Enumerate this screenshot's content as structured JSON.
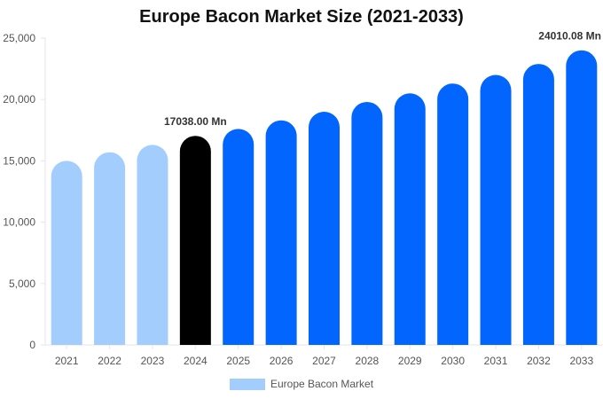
{
  "chart_data": {
    "type": "bar",
    "title": "Europe Bacon Market Size (2021-2033)",
    "xlabel": "",
    "ylabel": "",
    "categories": [
      "2021",
      "2022",
      "2023",
      "2024",
      "2025",
      "2026",
      "2027",
      "2028",
      "2029",
      "2030",
      "2031",
      "2032",
      "2033"
    ],
    "series": [
      {
        "name": "Europe Bacon Market",
        "values": [
          15000,
          15700,
          16300,
          17038.0,
          17600,
          18300,
          19000,
          19800,
          20500,
          21300,
          22000,
          22900,
          24010.08
        ]
      }
    ],
    "ylim": [
      0,
      25000
    ],
    "yticks": [
      0,
      5000,
      10000,
      15000,
      20000,
      25000
    ],
    "ytick_labels": [
      "0",
      "5,000",
      "10,000",
      "15,000",
      "20,000",
      "25,000"
    ],
    "annotations": [
      {
        "category": "2024",
        "text": "17038.00 Mn"
      },
      {
        "category": "2033",
        "text": "24010.08 Mn"
      }
    ],
    "colors": {
      "historical": "#a3cdfc",
      "current": "#000000",
      "forecast": "#0266fe"
    },
    "bar_color_groups": [
      "historical",
      "historical",
      "historical",
      "current",
      "forecast",
      "forecast",
      "forecast",
      "forecast",
      "forecast",
      "forecast",
      "forecast",
      "forecast",
      "forecast"
    ],
    "legend": {
      "position": "bottom",
      "entries": [
        "Europe Bacon Market"
      ]
    },
    "grid": false
  }
}
